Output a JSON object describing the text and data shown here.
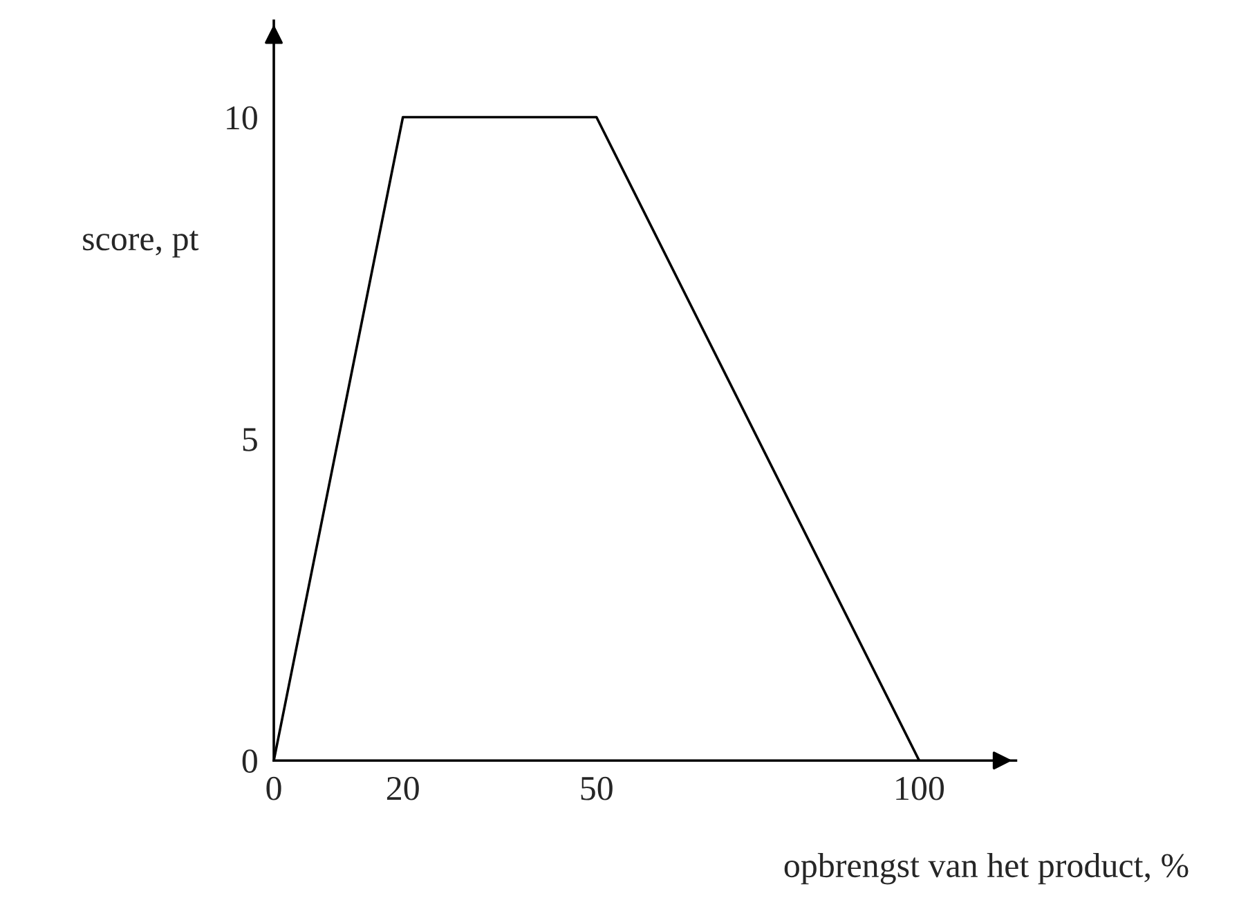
{
  "chart_data": {
    "type": "line",
    "xlabel": "opbrengst van het product, %",
    "ylabel": "score, pt",
    "x": [
      0,
      20,
      50,
      100
    ],
    "series": [
      {
        "color": "#000000",
        "values": [
          0,
          10,
          10,
          0
        ]
      }
    ],
    "xlim": [
      0,
      115
    ],
    "ylim": [
      0,
      11.5
    ],
    "xticks": [
      0,
      20,
      50,
      100
    ],
    "yticks": [
      0,
      5,
      10
    ],
    "grid": false,
    "legend": false,
    "marker": "none",
    "line_style": "solid"
  }
}
